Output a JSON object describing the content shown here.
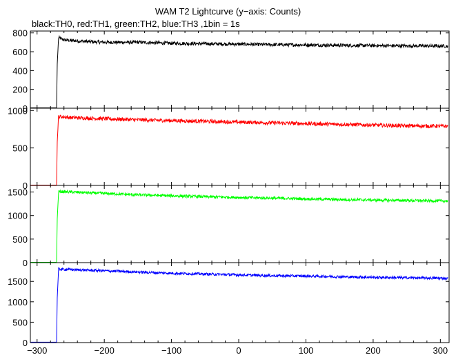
{
  "chart_data": {
    "type": "line",
    "title": "WAM T2 Lightcurve (y−axis: Counts)",
    "subtitle": "black:TH0, red:TH1, green:TH2, blue:TH3 ,1bin = 1s",
    "x_ticks": [
      "−300",
      "−200",
      "−100",
      "0",
      "100",
      "200",
      "300"
    ],
    "x_tick_values": [
      -300,
      -200,
      -100,
      0,
      100,
      200,
      300
    ],
    "xlim": [
      -310,
      313
    ],
    "grid": false,
    "panels": [
      {
        "name": "TH0",
        "color": "#000000",
        "ylim": [
          0,
          820
        ],
        "y_ticks": [
          "0",
          "200",
          "400",
          "600",
          "800"
        ],
        "y_tick_values": [
          0,
          200,
          400,
          600,
          800
        ],
        "points": [
          [
            -310,
            5
          ],
          [
            -271,
            5
          ],
          [
            -270,
            470
          ],
          [
            -268,
            750
          ],
          [
            -260,
            725
          ],
          [
            -230,
            710
          ],
          [
            -200,
            700
          ],
          [
            -150,
            700
          ],
          [
            -100,
            690
          ],
          [
            -50,
            685
          ],
          [
            0,
            680
          ],
          [
            50,
            675
          ],
          [
            100,
            672
          ],
          [
            150,
            668
          ],
          [
            200,
            665
          ],
          [
            250,
            662
          ],
          [
            310,
            660
          ]
        ],
        "noise": 18
      },
      {
        "name": "TH1",
        "color": "#ff0000",
        "ylim": [
          0,
          1030
        ],
        "y_ticks": [
          "0",
          "500",
          "1000"
        ],
        "y_tick_values": [
          0,
          500,
          1000
        ],
        "points": [
          [
            -310,
            5
          ],
          [
            -271,
            5
          ],
          [
            -270,
            580
          ],
          [
            -268,
            920
          ],
          [
            -250,
            905
          ],
          [
            -200,
            890
          ],
          [
            -150,
            875
          ],
          [
            -100,
            865
          ],
          [
            -50,
            855
          ],
          [
            0,
            845
          ],
          [
            50,
            835
          ],
          [
            100,
            825
          ],
          [
            150,
            815
          ],
          [
            200,
            805
          ],
          [
            250,
            795
          ],
          [
            310,
            790
          ]
        ],
        "noise": 25
      },
      {
        "name": "TH2",
        "color": "#00ff00",
        "ylim": [
          0,
          1640
        ],
        "y_ticks": [
          "0",
          "500",
          "1000",
          "1500"
        ],
        "y_tick_values": [
          0,
          500,
          1000,
          1500
        ],
        "points": [
          [
            -310,
            8
          ],
          [
            -271,
            8
          ],
          [
            -270,
            930
          ],
          [
            -268,
            1510
          ],
          [
            -250,
            1500
          ],
          [
            -200,
            1470
          ],
          [
            -150,
            1440
          ],
          [
            -100,
            1420
          ],
          [
            -50,
            1400
          ],
          [
            0,
            1385
          ],
          [
            50,
            1370
          ],
          [
            100,
            1355
          ],
          [
            150,
            1340
          ],
          [
            200,
            1330
          ],
          [
            250,
            1320
          ],
          [
            310,
            1310
          ]
        ],
        "noise": 30
      },
      {
        "name": "TH3",
        "color": "#0000ff",
        "ylim": [
          0,
          1960
        ],
        "y_ticks": [
          "0",
          "500",
          "1000",
          "1500"
        ],
        "y_tick_values": [
          0,
          500,
          1000,
          1500
        ],
        "points": [
          [
            -310,
            10
          ],
          [
            -271,
            10
          ],
          [
            -270,
            1100
          ],
          [
            -268,
            1800
          ],
          [
            -250,
            1790
          ],
          [
            -200,
            1760
          ],
          [
            -150,
            1730
          ],
          [
            -100,
            1700
          ],
          [
            -50,
            1680
          ],
          [
            0,
            1660
          ],
          [
            50,
            1640
          ],
          [
            100,
            1630
          ],
          [
            150,
            1615
          ],
          [
            200,
            1600
          ],
          [
            250,
            1590
          ],
          [
            310,
            1575
          ]
        ],
        "noise": 32
      }
    ]
  }
}
